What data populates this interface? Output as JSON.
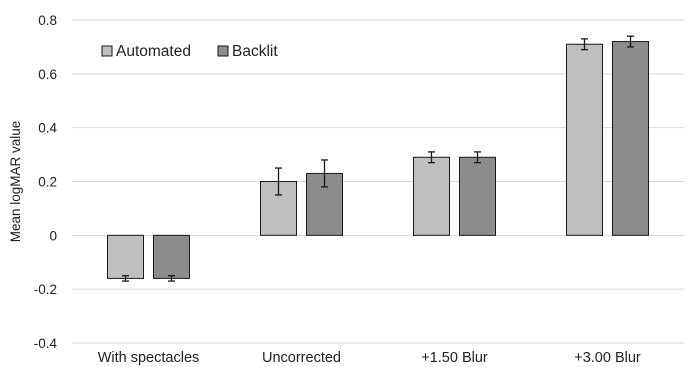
{
  "chart_data": {
    "type": "bar",
    "ylabel": "Mean logMAR value",
    "ylim": [
      -0.4,
      0.8
    ],
    "yticks": [
      -0.4,
      -0.2,
      0,
      0.2,
      0.4,
      0.6,
      0.8
    ],
    "ytick_labels": [
      "-0.4",
      "-0.2",
      "0",
      "0.2",
      "0.4",
      "0.6",
      "0.8"
    ],
    "grid": true,
    "legend_position": "top-left",
    "categories": [
      "With spectacles",
      "Uncorrected",
      "+1.50 Blur",
      "+3.00 Blur"
    ],
    "series": [
      {
        "name": "Automated",
        "color": "#bfbfbf",
        "values": [
          -0.16,
          0.2,
          0.29,
          0.71
        ],
        "errors": [
          0.01,
          0.05,
          0.02,
          0.02
        ]
      },
      {
        "name": "Backlit",
        "color": "#8c8c8c",
        "values": [
          -0.16,
          0.23,
          0.29,
          0.72
        ],
        "errors": [
          0.01,
          0.05,
          0.02,
          0.02
        ]
      }
    ]
  }
}
